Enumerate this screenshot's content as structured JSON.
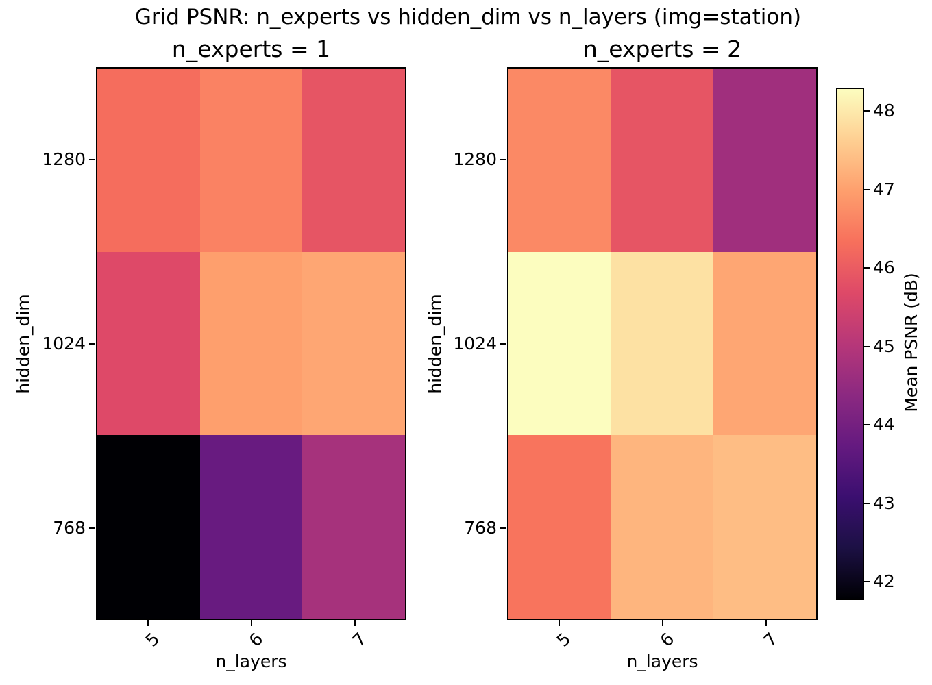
{
  "figure": {
    "title": "Grid PSNR: n_experts vs hidden_dim vs n_layers (img=station)"
  },
  "chart_data": {
    "type": "heatmap",
    "title": "Grid PSNR: n_experts vs hidden_dim vs n_layers (img=station)",
    "colormap": "magma",
    "layout": {
      "panels_share_colorbar": true,
      "legend_position": "right-colorbar",
      "grid": false
    },
    "x": {
      "label": "n_layers",
      "categories": [
        "5",
        "6",
        "7"
      ],
      "tick_rotation_deg": 45
    },
    "y": {
      "label": "hidden_dim",
      "categories": [
        "1280",
        "1024",
        "768"
      ]
    },
    "colorbar": {
      "label": "Mean PSNR (dB)",
      "ticks": [
        42,
        43,
        44,
        45,
        46,
        47,
        48
      ],
      "vmin": 41.8,
      "vmax": 48.3
    },
    "panels": [
      {
        "title": "n_experts = 1",
        "values": [
          [
            46.3,
            46.6,
            45.9
          ],
          [
            45.7,
            47.0,
            47.1
          ],
          [
            41.8,
            43.8,
            44.8
          ]
        ]
      },
      {
        "title": "n_experts = 2",
        "values": [
          [
            46.7,
            45.9,
            44.7
          ],
          [
            48.3,
            47.9,
            47.1
          ],
          [
            46.4,
            47.3,
            47.4
          ]
        ]
      }
    ]
  }
}
